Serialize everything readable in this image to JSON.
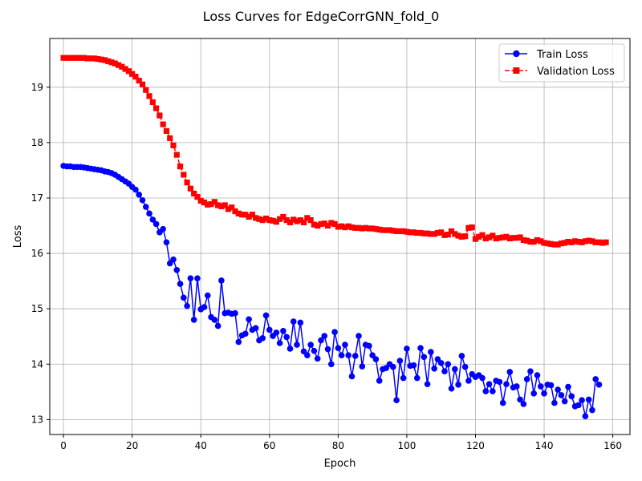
{
  "chart_data": {
    "type": "line",
    "title": "Loss Curves for EdgeCorrGNN_fold_0",
    "xlabel": "Epoch",
    "ylabel": "Loss",
    "xlim": [
      -4,
      165
    ],
    "ylim": [
      12.73,
      19.88
    ],
    "xticks": [
      0,
      20,
      40,
      60,
      80,
      100,
      120,
      140,
      160
    ],
    "yticks": [
      13,
      14,
      15,
      16,
      17,
      18,
      19
    ],
    "grid": true,
    "legend_position": "upper right",
    "series": [
      {
        "name": "Train Loss",
        "color": "#0000ff",
        "marker": "circle",
        "values": [
          17.58,
          17.57,
          17.57,
          17.56,
          17.56,
          17.56,
          17.55,
          17.54,
          17.53,
          17.52,
          17.51,
          17.5,
          17.48,
          17.47,
          17.45,
          17.42,
          17.38,
          17.34,
          17.3,
          17.26,
          17.2,
          17.15,
          17.06,
          16.96,
          16.84,
          16.72,
          16.61,
          16.53,
          16.38,
          16.44,
          16.2,
          15.82,
          15.89,
          15.7,
          15.45,
          15.2,
          15.05,
          15.55,
          14.8,
          15.55,
          14.99,
          15.03,
          15.24,
          14.85,
          14.8,
          14.69,
          15.51,
          14.92,
          14.93,
          14.91,
          14.92,
          14.4,
          14.52,
          14.55,
          14.81,
          14.62,
          14.65,
          14.43,
          14.47,
          14.88,
          14.62,
          14.51,
          14.57,
          14.38,
          14.6,
          14.49,
          14.28,
          14.77,
          14.35,
          14.75,
          14.23,
          14.16,
          14.35,
          14.24,
          14.1,
          14.43,
          14.51,
          14.27,
          14.0,
          14.58,
          14.29,
          14.16,
          14.35,
          14.16,
          13.78,
          14.15,
          14.51,
          13.96,
          14.35,
          14.33,
          14.16,
          14.09,
          13.7,
          13.91,
          13.93,
          14.0,
          13.95,
          13.35,
          14.06,
          13.75,
          14.28,
          13.97,
          13.98,
          13.75,
          14.29,
          14.13,
          13.64,
          14.22,
          13.92,
          14.09,
          14.02,
          13.87,
          14.0,
          13.56,
          13.91,
          13.63,
          14.15,
          13.95,
          13.7,
          13.82,
          13.77,
          13.8,
          13.75,
          13.51,
          13.64,
          13.51,
          13.7,
          13.68,
          13.3,
          13.64,
          13.86,
          13.58,
          13.6,
          13.36,
          13.28,
          13.73,
          13.87,
          13.47,
          13.8,
          13.6,
          13.47,
          13.63,
          13.62,
          13.3,
          13.54,
          13.44,
          13.33,
          13.59,
          13.42,
          13.24,
          13.26,
          13.35,
          13.06,
          13.36,
          13.17,
          13.73,
          13.63
        ]
      },
      {
        "name": "Validation Loss",
        "color": "#ff0000",
        "marker": "square",
        "values": [
          19.53,
          19.53,
          19.53,
          19.53,
          19.53,
          19.53,
          19.53,
          19.52,
          19.52,
          19.52,
          19.51,
          19.5,
          19.49,
          19.47,
          19.45,
          19.43,
          19.4,
          19.37,
          19.33,
          19.29,
          19.24,
          19.19,
          19.12,
          19.05,
          18.95,
          18.84,
          18.73,
          18.62,
          18.49,
          18.33,
          18.21,
          18.08,
          17.95,
          17.78,
          17.57,
          17.42,
          17.28,
          17.17,
          17.08,
          17.02,
          16.95,
          16.92,
          16.88,
          16.89,
          16.93,
          16.87,
          16.85,
          16.87,
          16.8,
          16.83,
          16.76,
          16.72,
          16.7,
          16.7,
          16.66,
          16.7,
          16.64,
          16.62,
          16.6,
          16.63,
          16.6,
          16.59,
          16.57,
          16.62,
          16.66,
          16.6,
          16.56,
          16.61,
          16.58,
          16.6,
          16.56,
          16.64,
          16.6,
          16.52,
          16.5,
          16.53,
          16.54,
          16.5,
          16.55,
          16.53,
          16.48,
          16.49,
          16.47,
          16.49,
          16.47,
          16.46,
          16.46,
          16.45,
          16.46,
          16.45,
          16.45,
          16.44,
          16.43,
          16.42,
          16.42,
          16.42,
          16.41,
          16.4,
          16.4,
          16.4,
          16.39,
          16.38,
          16.38,
          16.37,
          16.37,
          16.36,
          16.36,
          16.35,
          16.35,
          16.37,
          16.38,
          16.33,
          16.34,
          16.4,
          16.35,
          16.32,
          16.3,
          16.31,
          16.46,
          16.47,
          16.26,
          16.3,
          16.33,
          16.27,
          16.29,
          16.32,
          16.27,
          16.28,
          16.29,
          16.3,
          16.27,
          16.28,
          16.28,
          16.29,
          16.24,
          16.23,
          16.21,
          16.21,
          16.24,
          16.22,
          16.19,
          16.18,
          16.17,
          16.16,
          16.16,
          16.18,
          16.19,
          16.21,
          16.2,
          16.22,
          16.21,
          16.2,
          16.22,
          16.23,
          16.22,
          16.2,
          16.2,
          16.19,
          16.2
        ]
      }
    ]
  }
}
